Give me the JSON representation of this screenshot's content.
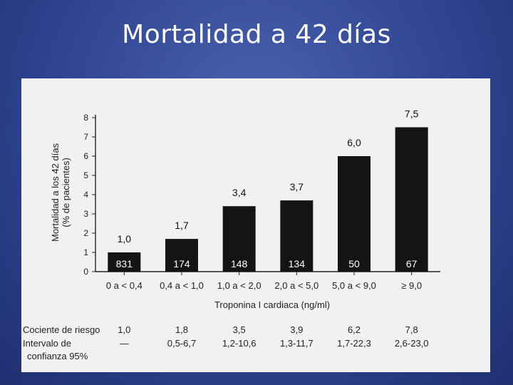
{
  "slide": {
    "title": "Mortalidad a 42 días"
  },
  "chart_data": {
    "type": "bar",
    "xlabel": "Troponina I cardiaca (ng/ml)",
    "ylabel_line1": "Mortalidad a los 42 días",
    "ylabel_line2": "(% de pacientes)",
    "ylim": [
      0,
      8
    ],
    "yticks": [
      "0",
      "1",
      "2",
      "3",
      "4",
      "5",
      "6",
      "7",
      "8"
    ],
    "categories": [
      "0 a < 0,4",
      "0,4 a < 1,0",
      "1,0 a < 2,0",
      "2,0 a < 5,0",
      "5,0 a < 9,0",
      "≥ 9,0"
    ],
    "values": [
      1.0,
      1.7,
      3.4,
      3.7,
      6.0,
      7.5
    ],
    "value_labels": [
      "1,0",
      "1,7",
      "3,4",
      "3,7",
      "6,0",
      "7,5"
    ],
    "n_patients": [
      "831",
      "174",
      "148",
      "134",
      "50",
      "67"
    ],
    "bar_color": "#141414"
  },
  "table": {
    "hazard_label": "Cociente de riesgo",
    "hazard_values": [
      "1,0",
      "1,8",
      "3,5",
      "3,9",
      "6,2",
      "7,8"
    ],
    "ci_label_line1": "Intervalo de",
    "ci_label_line2": "confianza 95%",
    "ci_values": [
      "—",
      "0,5-6,7",
      "1,2-10,6",
      "1,3-11,7",
      "1,7-22,3",
      "2,6-23,0"
    ]
  }
}
